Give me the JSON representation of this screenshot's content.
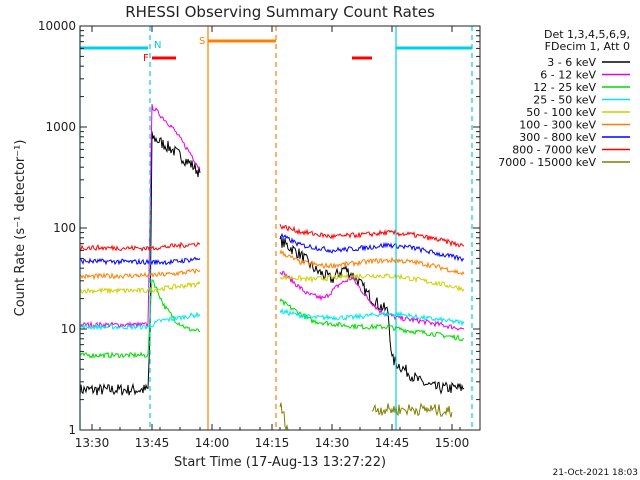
{
  "chart_data": {
    "type": "line",
    "title": "RHESSI Observing Summary Count Rates",
    "xlabel": "Start Time (17-Aug-13 13:27:22)",
    "ylabel": "Count Rate (s⁻¹ detector⁻¹)",
    "y_scale": "log",
    "xlim": [
      "13:27",
      "15:07"
    ],
    "ylim": [
      1,
      10000
    ],
    "x_ticks": [
      "13:30",
      "13:45",
      "14:00",
      "14:15",
      "14:30",
      "14:45",
      "15:00"
    ],
    "y_ticks": [
      "1",
      "10",
      "100",
      "1000",
      "10000"
    ],
    "legend_placement": "right",
    "legend_header": [
      "Det 1,3,4,5,6,9,",
      "FDecim 1, Att 0"
    ],
    "series": [
      {
        "name": "3 - 6 keV",
        "color": "#000000",
        "segments": [
          [
            [
              "13:27",
              2.5
            ],
            [
              "13:44",
              2.5
            ],
            [
              "13:44.5",
              9
            ],
            [
              "13:45",
              800
            ],
            [
              "13:50",
              600
            ],
            [
              "13:55",
              420
            ],
            [
              "13:57",
              350
            ]
          ],
          [
            [
              "14:17",
              75
            ],
            [
              "14:22",
              55
            ],
            [
              "14:26",
              38
            ],
            [
              "14:30",
              31
            ],
            [
              "14:33",
              40
            ],
            [
              "14:36",
              32
            ],
            [
              "14:39",
              22
            ],
            [
              "14:42",
              17
            ],
            [
              "14:44",
              15
            ],
            [
              "14:45",
              5
            ],
            [
              "14:48",
              4
            ],
            [
              "14:52",
              3
            ],
            [
              "14:56",
              2.6
            ],
            [
              "15:03",
              2.6
            ]
          ]
        ]
      },
      {
        "name": "6 - 12 keV",
        "color": "#e400e4",
        "segments": [
          [
            [
              "13:27",
              11
            ],
            [
              "13:44",
              11
            ],
            [
              "13:45",
              1600
            ],
            [
              "13:50",
              1000
            ],
            [
              "13:55",
              520
            ],
            [
              "13:57",
              380
            ]
          ],
          [
            [
              "14:17",
              38
            ],
            [
              "14:20",
              30
            ],
            [
              "14:24",
              22
            ],
            [
              "14:28",
              20
            ],
            [
              "14:32",
              28
            ],
            [
              "14:35",
              32
            ],
            [
              "14:39",
              20
            ],
            [
              "14:42",
              15
            ],
            [
              "14:46",
              13
            ],
            [
              "14:52",
              12
            ],
            [
              "15:03",
              10
            ]
          ]
        ]
      },
      {
        "name": "12 - 25 keV",
        "color": "#00dc00",
        "segments": [
          [
            [
              "13:27",
              5.5
            ],
            [
              "13:44",
              5.5
            ],
            [
              "13:45",
              32
            ],
            [
              "13:48",
              17
            ],
            [
              "13:51",
              12
            ],
            [
              "13:54",
              10
            ],
            [
              "13:57",
              9.5
            ]
          ],
          [
            [
              "14:17",
              19
            ],
            [
              "14:20",
              16
            ],
            [
              "14:25",
              12
            ],
            [
              "14:32",
              11
            ],
            [
              "14:38",
              10.5
            ],
            [
              "14:44",
              10.5
            ],
            [
              "14:50",
              9.5
            ],
            [
              "14:55",
              9
            ],
            [
              "15:03",
              8
            ]
          ]
        ]
      },
      {
        "name": "25 - 50 keV",
        "color": "#00e8e8",
        "segments": [
          [
            [
              "13:27",
              10.5
            ],
            [
              "13:44",
              10.5
            ],
            [
              "13:47",
              12
            ],
            [
              "13:57",
              14
            ]
          ],
          [
            [
              "14:17",
              15
            ],
            [
              "14:25",
              13
            ],
            [
              "14:35",
              13
            ],
            [
              "14:42",
              14
            ],
            [
              "14:47",
              14
            ],
            [
              "14:52",
              13
            ],
            [
              "15:03",
              11.5
            ]
          ]
        ]
      },
      {
        "name": "50 - 100 keV",
        "color": "#cfcf00",
        "segments": [
          [
            [
              "13:27",
              24
            ],
            [
              "13:44",
              24
            ],
            [
              "13:50",
              26
            ],
            [
              "13:57",
              28
            ]
          ],
          [
            [
              "14:17",
              33
            ],
            [
              "14:25",
              31
            ],
            [
              "14:33",
              33
            ],
            [
              "14:40",
              34
            ],
            [
              "14:47",
              33
            ],
            [
              "14:55",
              29
            ],
            [
              "15:03",
              25
            ]
          ]
        ]
      },
      {
        "name": "100 - 300 keV",
        "color": "#ff7f00",
        "segments": [
          [
            [
              "13:27",
              33
            ],
            [
              "13:44",
              34
            ],
            [
              "13:50",
              35
            ],
            [
              "13:57",
              38
            ]
          ],
          [
            [
              "14:17",
              58
            ],
            [
              "14:22",
              46
            ],
            [
              "14:28",
              42
            ],
            [
              "14:34",
              44
            ],
            [
              "14:40",
              47
            ],
            [
              "14:46",
              48
            ],
            [
              "14:52",
              45
            ],
            [
              "14:58",
              40
            ],
            [
              "15:03",
              35
            ]
          ]
        ]
      },
      {
        "name": "300 - 800 keV",
        "color": "#0000ff",
        "segments": [
          [
            [
              "13:27",
              47
            ],
            [
              "13:44",
              46
            ],
            [
              "13:50",
              46
            ],
            [
              "13:57",
              50
            ]
          ],
          [
            [
              "14:17",
              85
            ],
            [
              "14:22",
              68
            ],
            [
              "14:30",
              60
            ],
            [
              "14:37",
              63
            ],
            [
              "14:44",
              68
            ],
            [
              "14:50",
              64
            ],
            [
              "14:57",
              55
            ],
            [
              "15:03",
              49
            ]
          ]
        ]
      },
      {
        "name": "800 - 7000 keV",
        "color": "#ff0000",
        "segments": [
          [
            [
              "13:27",
              64
            ],
            [
              "13:44",
              63
            ],
            [
              "13:50",
              66
            ],
            [
              "13:57",
              70
            ]
          ],
          [
            [
              "14:17",
              105
            ],
            [
              "14:22",
              92
            ],
            [
              "14:30",
              82
            ],
            [
              "14:38",
              86
            ],
            [
              "14:44",
              90
            ],
            [
              "14:50",
              86
            ],
            [
              "14:57",
              76
            ],
            [
              "15:03",
              66
            ]
          ]
        ]
      },
      {
        "name": "7000 - 15000 keV",
        "color": "#808000",
        "segments": [
          [
            [
              "14:17",
              1.8
            ],
            [
              "14:19",
              1.0
            ]
          ],
          [
            [
              "14:40",
              1.6
            ],
            [
              "14:48",
              1.6
            ],
            [
              "14:55",
              1.6
            ],
            [
              "15:00",
              1.5
            ]
          ]
        ]
      }
    ],
    "intervals": [
      {
        "label": "N",
        "color": "#00d0e0",
        "spans": [
          [
            "13:27",
            "13:44"
          ],
          [
            "14:46",
            "15:05"
          ]
        ]
      },
      {
        "label": "F",
        "color": "#ff0000",
        "spans": [
          [
            "13:45",
            "13:51"
          ],
          [
            "14:35",
            "14:40"
          ]
        ]
      },
      {
        "label": "S",
        "color": "#ff7f00",
        "spans": [
          [
            "13:59",
            "14:16"
          ]
        ]
      }
    ],
    "vlines": [
      {
        "t": "13:27",
        "color": "#00d0e0",
        "dash": false
      },
      {
        "t": "13:44.5",
        "color": "#00d0e0",
        "dash": true
      },
      {
        "t": "13:59",
        "color": "#ff7f00",
        "dash": false
      },
      {
        "t": "14:16",
        "color": "#ff7f00",
        "dash": true
      },
      {
        "t": "14:46",
        "color": "#00d0e0",
        "dash": false
      },
      {
        "t": "15:05",
        "color": "#00d0e0",
        "dash": true
      }
    ],
    "footer": "21-Oct-2021 18:03"
  }
}
